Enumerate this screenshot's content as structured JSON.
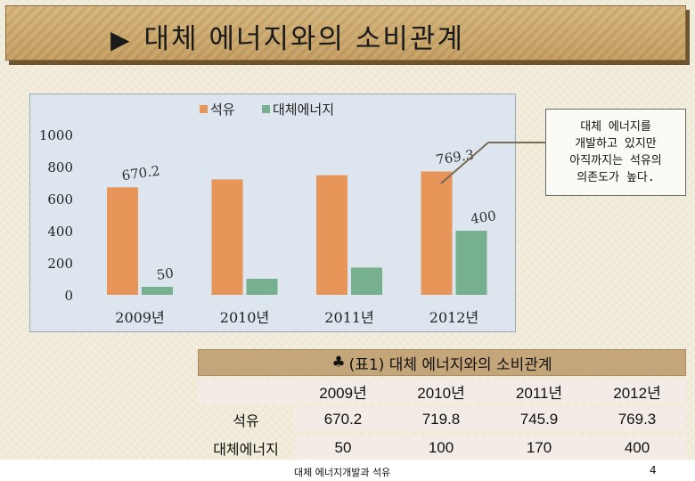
{
  "slide": {
    "title_marker": "▶",
    "title": "대체 에너지와의 소비관계",
    "footer": "대체 에너지개발과 석유",
    "page": "4"
  },
  "callout": {
    "text": "대체 에너지를\n개발하고 있지만\n아직까지는 석유의\n의존도가 높다."
  },
  "table": {
    "caption_icon": "♣",
    "caption": "(표1) 대체 에너지와의 소비관계",
    "columns": [
      "",
      "2009년",
      "2010년",
      "2011년",
      "2012년"
    ],
    "rows": [
      {
        "label": "석유",
        "values": [
          "670.2",
          "719.8",
          "745.9",
          "769.3"
        ]
      },
      {
        "label": "대체에너지",
        "values": [
          "50",
          "100",
          "170",
          "400"
        ]
      }
    ]
  },
  "chart_data": {
    "type": "bar",
    "categories": [
      "2009년",
      "2010년",
      "2011년",
      "2012년"
    ],
    "series": [
      {
        "name": "석유",
        "values": [
          670.2,
          719.8,
          745.9,
          769.3
        ],
        "color": "#e8955a"
      },
      {
        "name": "대체에너지",
        "values": [
          50,
          100,
          170,
          400
        ],
        "color": "#76b08e"
      }
    ],
    "data_labels": [
      {
        "series": 0,
        "index": 0,
        "text": "670.2"
      },
      {
        "series": 1,
        "index": 0,
        "text": "50"
      },
      {
        "series": 0,
        "index": 3,
        "text": "769.3"
      },
      {
        "series": 1,
        "index": 3,
        "text": "400"
      }
    ],
    "ylim": [
      0,
      1000
    ],
    "yticks": [
      0,
      200,
      400,
      600,
      800,
      1000
    ],
    "legend_position": "top",
    "grid": false,
    "title": "",
    "xlabel": "",
    "ylabel": ""
  }
}
